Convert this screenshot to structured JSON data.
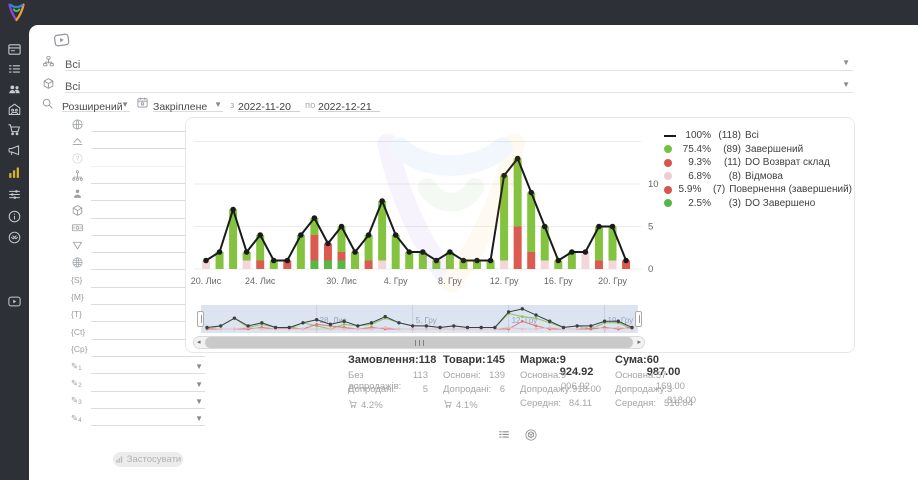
{
  "topbar": {
    "logo": "colorful-v-logo"
  },
  "sidebar": {
    "items": [
      {
        "icon": "window-card"
      },
      {
        "icon": "order-list"
      },
      {
        "icon": "customers"
      },
      {
        "icon": "store"
      },
      {
        "icon": "cart"
      },
      {
        "icon": "megaphone"
      },
      {
        "icon": "analytics",
        "active": true
      },
      {
        "icon": "settings-sliders"
      },
      {
        "icon": "info"
      },
      {
        "icon": "support"
      },
      {
        "icon": "video-lessons"
      }
    ]
  },
  "toolbar": {
    "video_icon": "video-hint",
    "row1_value": "Всі",
    "row2_value": "Всі",
    "search_mode": "Розширений",
    "period_mode": "Закріплене",
    "from_label": "з",
    "date_from": "2022-11-20",
    "to_label": "по",
    "date_to": "2022-12-21"
  },
  "filters": {
    "rows": [
      {
        "icon": "globe"
      },
      {
        "icon": "layers"
      },
      {
        "icon": "help",
        "disabled": true
      },
      {
        "icon": "sitemap"
      },
      {
        "icon": "person"
      },
      {
        "icon": "box"
      },
      {
        "icon": "money"
      },
      {
        "icon": "funnel"
      },
      {
        "icon": "globe-grid"
      },
      {
        "text": "{S}"
      },
      {
        "text": "{M}"
      },
      {
        "text": "{T}"
      },
      {
        "text": "{Ct}"
      },
      {
        "text": "{Cp}"
      },
      {
        "text": "✎",
        "sub": "1"
      },
      {
        "text": "✎",
        "sub": "2"
      },
      {
        "text": "✎",
        "sub": "3"
      },
      {
        "text": "✎",
        "sub": "4"
      }
    ],
    "apply_label": "Застосувати"
  },
  "chart_data": {
    "type": "bar",
    "subtype": "stacked-bars-with-total-line",
    "dates": [
      "2022-11-20",
      "2022-11-21",
      "2022-11-22",
      "2022-11-23",
      "2022-11-24",
      "2022-11-25",
      "2022-11-26",
      "2022-11-27",
      "2022-11-28",
      "2022-11-29",
      "2022-11-30",
      "2022-12-01",
      "2022-12-02",
      "2022-12-03",
      "2022-12-04",
      "2022-12-05",
      "2022-12-06",
      "2022-12-07",
      "2022-12-08",
      "2022-12-09",
      "2022-12-10",
      "2022-12-11",
      "2022-12-12",
      "2022-12-13",
      "2022-12-14",
      "2022-12-15",
      "2022-12-16",
      "2022-12-17",
      "2022-12-18",
      "2022-12-19",
      "2022-12-20",
      "2022-12-21"
    ],
    "x_tick_labels": [
      "20. Лис",
      "24. Лис",
      "30. Лис",
      "4. Гру",
      "8. Гру",
      "12. Гру",
      "16. Гру",
      "20. Гру"
    ],
    "x_tick_day_index": [
      0,
      4,
      10,
      14,
      18,
      22,
      26,
      30
    ],
    "y_ticks": [
      0,
      5,
      10
    ],
    "ylim": [
      0,
      15
    ],
    "grid": "horizontal",
    "line_series": {
      "name": "Всі",
      "color": "#1a1a1a",
      "values": [
        1,
        2,
        7,
        2,
        4,
        1,
        1,
        4,
        6,
        3,
        5,
        2,
        4,
        8,
        4,
        2,
        2,
        1,
        2,
        1,
        1,
        1,
        11,
        13,
        9,
        5,
        1,
        2,
        2,
        5,
        5,
        1
      ]
    },
    "bar_series_bottom_to_top": [
      {
        "key": "do-zaversheno",
        "color": "#5bb646",
        "values": [
          0,
          0,
          0,
          0,
          0,
          0,
          0,
          0,
          1,
          1,
          1,
          0,
          0,
          0,
          0,
          0,
          0,
          0,
          0,
          0,
          0,
          0,
          0,
          0,
          0,
          0,
          0,
          0,
          0,
          0,
          0,
          0
        ]
      },
      {
        "key": "povernennya-vozvrat",
        "color": "#db5b51",
        "values": [
          0,
          0,
          0,
          0,
          1,
          0,
          1,
          0,
          3,
          2,
          1,
          0,
          1,
          0,
          0,
          0,
          0,
          0,
          0,
          0,
          0,
          0,
          0,
          5,
          2,
          0,
          0,
          0,
          0,
          1,
          0,
          1
        ]
      },
      {
        "key": "vidmova",
        "color": "#f4d6d8",
        "values": [
          1,
          0,
          0,
          1,
          0,
          0,
          0,
          0,
          0,
          0,
          0,
          0,
          0,
          1,
          0,
          0,
          0,
          0,
          0,
          0,
          0,
          0,
          1,
          0,
          0,
          1,
          0,
          0,
          2,
          0,
          1,
          0
        ]
      },
      {
        "key": "zavershenyi",
        "color": "#84c340",
        "values": [
          0,
          2,
          7,
          1,
          3,
          1,
          0,
          4,
          2,
          0,
          3,
          2,
          3,
          7,
          4,
          2,
          2,
          1,
          2,
          1,
          1,
          1,
          10,
          8,
          7,
          4,
          1,
          2,
          0,
          4,
          4,
          0
        ]
      }
    ],
    "legend": [
      {
        "marker": "line",
        "color": "#1a1a1a",
        "pct": "100%",
        "count": "(118)",
        "label": "Всі"
      },
      {
        "marker": "dot",
        "color": "#77c043",
        "pct": "75.4%",
        "count": "(89)",
        "label": "Завершений"
      },
      {
        "marker": "dot",
        "color": "#d9534f",
        "pct": "9.3%",
        "count": "(11)",
        "label": "DO Возврат склад"
      },
      {
        "marker": "dot",
        "color": "#f0cdd1",
        "pct": "6.8%",
        "count": "(8)",
        "label": "Відмова"
      },
      {
        "marker": "dot",
        "color": "#d9534f",
        "pct": "5.9%",
        "count": "(7)",
        "label": "Повернення (завершений)"
      },
      {
        "marker": "dot",
        "color": "#55b44a",
        "pct": "2.5%",
        "count": "(3)",
        "label": "DO Завершено"
      }
    ],
    "navigator_labels": [
      "28. Лис",
      "5. Гру",
      "12. Гру",
      "19. Гру"
    ],
    "navigator_label_day_index": [
      8,
      15,
      22,
      29
    ]
  },
  "stats": {
    "groups": [
      {
        "title": "Замовлення:",
        "value": "118",
        "rows": [
          {
            "label": "Без допродажів:",
            "value": "113"
          },
          {
            "label": "Допродані:",
            "value": "5"
          },
          {
            "cart_pct": "4.2%"
          }
        ]
      },
      {
        "title": "Товари:",
        "value": "145",
        "rows": [
          {
            "label": "Основні:",
            "value": "139"
          },
          {
            "label": "Допродані:",
            "value": "6"
          },
          {
            "cart_pct": "4.1%"
          }
        ]
      },
      {
        "title": "Маржа:",
        "value": "9 924.92",
        "rows": [
          {
            "label": "Основна:",
            "value": "9 006.92"
          },
          {
            "label": "Допродажу:",
            "value": "918.00"
          },
          {
            "label": "Середня:",
            "value": "84.11"
          }
        ]
      },
      {
        "title": "Сума:",
        "value": "60 987.00",
        "rows": [
          {
            "label": "Основна:",
            "value": "57 169.00"
          },
          {
            "label": "Допродажу:",
            "value": "3 818.00"
          },
          {
            "label": "Середня:",
            "value": "516.84"
          }
        ]
      }
    ]
  },
  "view_toggles": [
    {
      "icon": "list-view"
    },
    {
      "icon": "box-view"
    }
  ],
  "bottom_bar": {
    "items": [
      {
        "icon": "id-sort"
      },
      {
        "icon": "id-o-sort"
      },
      {
        "icon": "bag"
      },
      {
        "icon": "money"
      },
      {
        "icon": "box"
      },
      {
        "icon": "calendar-17"
      },
      {
        "icon": "stopwatch"
      },
      {
        "icon": "calendar-dot"
      },
      {
        "icon": "calendar-edit"
      }
    ]
  }
}
